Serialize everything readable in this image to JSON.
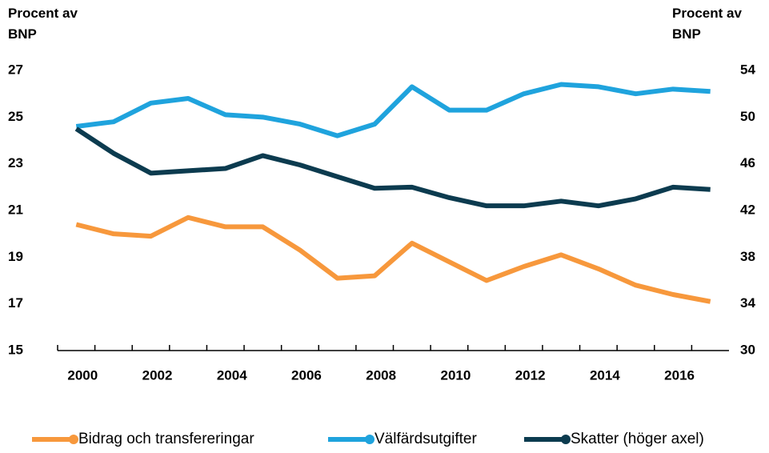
{
  "chart_data": {
    "type": "line",
    "ylabel": "Procent av BNP",
    "y2label": "Procent av BNP",
    "categories": [
      "2000",
      null,
      "2002",
      null,
      "2004",
      null,
      "2006",
      null,
      "2008",
      null,
      "2010",
      null,
      "2012",
      null,
      "2014",
      null,
      "2016",
      null
    ],
    "series": [
      {
        "name": "Bidrag och transfereringar",
        "color": "#f7983c",
        "values": [
          20.4,
          20.0,
          19.9,
          20.7,
          20.3,
          20.3,
          19.3,
          18.1,
          18.2,
          19.6,
          18.8,
          18.0,
          18.6,
          19.1,
          18.5,
          17.8,
          17.4,
          17.1
        ]
      },
      {
        "name": "Välfärdsutgifter",
        "color": "#1fa3dd",
        "values": [
          24.6,
          24.8,
          25.6,
          25.8,
          25.1,
          25.0,
          24.7,
          24.2,
          24.7,
          26.3,
          25.3,
          25.3,
          26.0,
          26.4,
          26.3,
          26.0,
          26.2,
          26.1
        ]
      },
      {
        "name": "Skatter (höger axel)",
        "color": "#0c3b4f",
        "axis": "y2",
        "values": [
          49.0,
          46.9,
          45.2,
          45.4,
          45.6,
          46.7,
          45.9,
          44.9,
          43.9,
          44.0,
          43.1,
          42.4,
          42.4,
          42.8,
          42.4,
          43.0,
          44.0,
          43.8
        ]
      }
    ],
    "ylim": [
      15,
      27
    ],
    "yticks": [
      15,
      17,
      19,
      21,
      23,
      25,
      27
    ],
    "y2lim": [
      30,
      54
    ],
    "y2ticks": [
      30,
      34,
      38,
      42,
      46,
      50,
      54
    ],
    "grid": false,
    "legend": "bottom"
  }
}
